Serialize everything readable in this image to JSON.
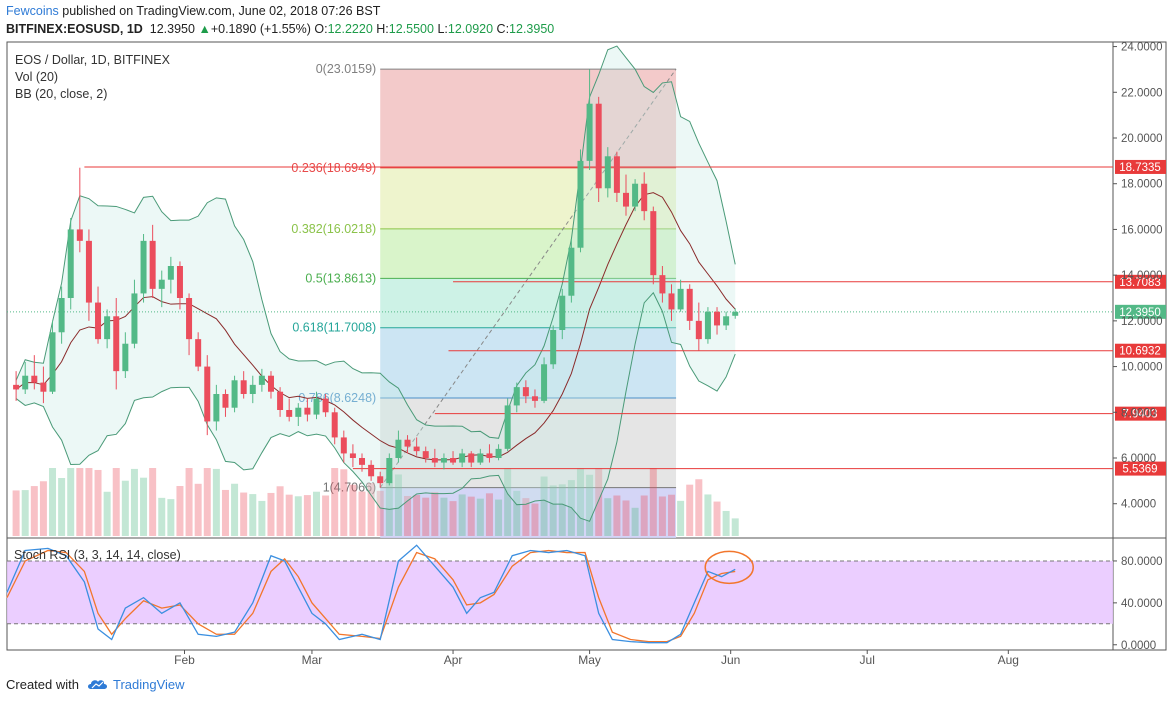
{
  "header": {
    "user": "Fewcoins",
    "published": "published on TradingView.com, June 02, 2018 07:26 BST",
    "symbol": "BITFINEX:EOSUSD, 1D",
    "last": "12.3950",
    "change": "+0.1890 (+1.55%)",
    "o_label": "O:",
    "o": "12.2220",
    "h_label": "H:",
    "h": "12.5500",
    "l_label": "L:",
    "l": "12.0920",
    "c_label": "C:",
    "c": "12.3950"
  },
  "legend": {
    "line1": "EOS / Dollar, 1D, BITFINEX",
    "line2": "Vol (20)",
    "line3": "BB (20, close, 2)"
  },
  "rsi_title": "Stoch RSI (3, 3, 14, 14, close)",
  "footer": {
    "created": "Created with",
    "brand": "TradingView"
  },
  "colors": {
    "up": "#53b987",
    "down": "#eb4d5c",
    "bb": "#4a9a78",
    "bbfill": "#c9ebe4",
    "basis": "#8a2b2b",
    "hline": "#e83a3a",
    "rsi_k": "#3b8fe0",
    "rsi_d": "#f2762c",
    "rsi_band": "#e7c6ff",
    "accent": "#2f7bd6"
  },
  "chart_data": {
    "type": "candlestick",
    "title": "EOS / Dollar, 1D, BITFINEX",
    "y_ticks": [
      "24.0000",
      "22.0000",
      "20.0000",
      "18.0000",
      "16.0000",
      "14.0000",
      "12.0000",
      "10.0000",
      "8.0000",
      "6.0000",
      "4.0000"
    ],
    "y_tick_values": [
      24,
      22,
      20,
      18,
      16,
      14,
      12,
      10,
      8,
      6,
      4
    ],
    "ylim": [
      2.5,
      24.2
    ],
    "x_ticks": [
      "Feb",
      "Mar",
      "Apr",
      "May",
      "Jun",
      "Jul",
      "Aug"
    ],
    "x_tick_dates": [
      "2018-02-01",
      "2018-03-01",
      "2018-04-01",
      "2018-05-01",
      "2018-06-01",
      "2018-07-01",
      "2018-08-01"
    ],
    "x_range_dates": [
      "2017-12-24",
      "2018-08-24"
    ],
    "fibonacci": {
      "start_date": "2018-03-16",
      "end_date": "2018-05-20",
      "levels": [
        {
          "label": "0(23.0159)",
          "value": 23.0159,
          "color": "#808080",
          "fill": "#f2c4c4"
        },
        {
          "label": "0.236(18.6949)",
          "value": 18.6949,
          "color": "#e84a4a",
          "fill": "#ecf3c8"
        },
        {
          "label": "0.382(16.0218)",
          "value": 16.0218,
          "color": "#8bc34a",
          "fill": "#d5f3c4"
        },
        {
          "label": "0.5(13.8613)",
          "value": 13.8613,
          "color": "#4caf50",
          "fill": "#c8f1e3"
        },
        {
          "label": "0.618(11.7008)",
          "value": 11.7008,
          "color": "#26a69a",
          "fill": "#c7e2f2"
        },
        {
          "label": "0.786(8.6248)",
          "value": 8.6248,
          "color": "#4a90c8",
          "fill": "#e2e2e2"
        },
        {
          "label": "1(4.7066)",
          "value": 4.7066,
          "color": "#777777",
          "fill": "#cfd0f5"
        }
      ]
    },
    "horizontal_lines": [
      {
        "value": 18.7335,
        "label": "18.7335",
        "start_date": "2018-01-10"
      },
      {
        "value": 13.7083,
        "label": "13.7083",
        "start_date": "2018-04-01"
      },
      {
        "value": 10.6932,
        "label": "10.6932",
        "start_date": "2018-03-31"
      },
      {
        "value": 7.9403,
        "label": "7.9403",
        "start_date": "2018-03-28"
      },
      {
        "value": 5.5369,
        "label": "5.5369",
        "start_date": "2018-03-10"
      }
    ],
    "last_price": {
      "value": 12.395,
      "label": "12.3950"
    },
    "candles": [
      {
        "d": "2017-12-26",
        "o": 9.2,
        "h": 9.8,
        "l": 8.5,
        "c": 9.0
      },
      {
        "d": "2017-12-28",
        "o": 9.0,
        "h": 10.2,
        "l": 8.8,
        "c": 9.6
      },
      {
        "d": "2017-12-30",
        "o": 9.6,
        "h": 10.5,
        "l": 9.0,
        "c": 9.3
      },
      {
        "d": "2018-01-01",
        "o": 9.3,
        "h": 10.0,
        "l": 8.4,
        "c": 8.9
      },
      {
        "d": "2018-01-03",
        "o": 8.9,
        "h": 12.0,
        "l": 8.8,
        "c": 11.5
      },
      {
        "d": "2018-01-05",
        "o": 11.5,
        "h": 13.5,
        "l": 11.0,
        "c": 13.0
      },
      {
        "d": "2018-01-07",
        "o": 13.0,
        "h": 16.5,
        "l": 12.5,
        "c": 16.0
      },
      {
        "d": "2018-01-09",
        "o": 16.0,
        "h": 18.7,
        "l": 15.0,
        "c": 15.5
      },
      {
        "d": "2018-01-11",
        "o": 15.5,
        "h": 16.0,
        "l": 12.0,
        "c": 12.8
      },
      {
        "d": "2018-01-13",
        "o": 12.8,
        "h": 13.5,
        "l": 11.0,
        "c": 11.2
      },
      {
        "d": "2018-01-15",
        "o": 11.2,
        "h": 12.5,
        "l": 10.8,
        "c": 12.2
      },
      {
        "d": "2018-01-17",
        "o": 12.2,
        "h": 13.0,
        "l": 9.0,
        "c": 9.8
      },
      {
        "d": "2018-01-19",
        "o": 9.8,
        "h": 11.5,
        "l": 9.5,
        "c": 11.0
      },
      {
        "d": "2018-01-21",
        "o": 11.0,
        "h": 13.8,
        "l": 10.8,
        "c": 13.2
      },
      {
        "d": "2018-01-23",
        "o": 13.2,
        "h": 15.8,
        "l": 12.8,
        "c": 15.5
      },
      {
        "d": "2018-01-25",
        "o": 15.5,
        "h": 16.2,
        "l": 13.0,
        "c": 13.4
      },
      {
        "d": "2018-01-27",
        "o": 13.4,
        "h": 14.2,
        "l": 12.6,
        "c": 13.8
      },
      {
        "d": "2018-01-29",
        "o": 13.8,
        "h": 14.8,
        "l": 13.2,
        "c": 14.4
      },
      {
        "d": "2018-01-31",
        "o": 14.4,
        "h": 14.6,
        "l": 12.5,
        "c": 13.0
      },
      {
        "d": "2018-02-02",
        "o": 13.0,
        "h": 13.2,
        "l": 10.5,
        "c": 11.2
      },
      {
        "d": "2018-02-04",
        "o": 11.2,
        "h": 11.5,
        "l": 9.8,
        "c": 10.0
      },
      {
        "d": "2018-02-06",
        "o": 10.0,
        "h": 10.5,
        "l": 7.0,
        "c": 7.6
      },
      {
        "d": "2018-02-08",
        "o": 7.6,
        "h": 9.2,
        "l": 7.2,
        "c": 8.8
      },
      {
        "d": "2018-02-10",
        "o": 8.8,
        "h": 9.0,
        "l": 7.8,
        "c": 8.2
      },
      {
        "d": "2018-02-12",
        "o": 8.2,
        "h": 9.6,
        "l": 8.0,
        "c": 9.4
      },
      {
        "d": "2018-02-14",
        "o": 9.4,
        "h": 9.8,
        "l": 8.6,
        "c": 8.8
      },
      {
        "d": "2018-02-16",
        "o": 8.8,
        "h": 9.6,
        "l": 8.4,
        "c": 9.2
      },
      {
        "d": "2018-02-18",
        "o": 9.2,
        "h": 9.9,
        "l": 8.9,
        "c": 9.6
      },
      {
        "d": "2018-02-20",
        "o": 9.6,
        "h": 9.8,
        "l": 8.6,
        "c": 8.9
      },
      {
        "d": "2018-02-22",
        "o": 8.9,
        "h": 9.1,
        "l": 7.8,
        "c": 8.1
      },
      {
        "d": "2018-02-24",
        "o": 8.1,
        "h": 8.6,
        "l": 7.6,
        "c": 7.8
      },
      {
        "d": "2018-02-26",
        "o": 7.8,
        "h": 8.4,
        "l": 7.4,
        "c": 8.2
      },
      {
        "d": "2018-02-28",
        "o": 8.2,
        "h": 8.6,
        "l": 7.6,
        "c": 7.9
      },
      {
        "d": "2018-03-02",
        "o": 7.9,
        "h": 8.9,
        "l": 7.7,
        "c": 8.6
      },
      {
        "d": "2018-03-04",
        "o": 8.6,
        "h": 8.8,
        "l": 7.8,
        "c": 8.0
      },
      {
        "d": "2018-03-06",
        "o": 8.0,
        "h": 8.2,
        "l": 6.6,
        "c": 6.9
      },
      {
        "d": "2018-03-08",
        "o": 6.9,
        "h": 7.2,
        "l": 5.8,
        "c": 6.2
      },
      {
        "d": "2018-03-10",
        "o": 6.2,
        "h": 6.6,
        "l": 5.6,
        "c": 6.0
      },
      {
        "d": "2018-03-12",
        "o": 6.0,
        "h": 6.2,
        "l": 5.4,
        "c": 5.7
      },
      {
        "d": "2018-03-14",
        "o": 5.7,
        "h": 5.9,
        "l": 5.0,
        "c": 5.2
      },
      {
        "d": "2018-03-16",
        "o": 5.2,
        "h": 5.4,
        "l": 4.7,
        "c": 4.9
      },
      {
        "d": "2018-03-18",
        "o": 4.9,
        "h": 6.2,
        "l": 4.8,
        "c": 6.0
      },
      {
        "d": "2018-03-20",
        "o": 6.0,
        "h": 7.2,
        "l": 5.8,
        "c": 6.8
      },
      {
        "d": "2018-03-22",
        "o": 6.8,
        "h": 7.0,
        "l": 6.2,
        "c": 6.5
      },
      {
        "d": "2018-03-24",
        "o": 6.5,
        "h": 6.9,
        "l": 6.1,
        "c": 6.3
      },
      {
        "d": "2018-03-26",
        "o": 6.3,
        "h": 6.5,
        "l": 5.8,
        "c": 6.0
      },
      {
        "d": "2018-03-28",
        "o": 6.0,
        "h": 6.4,
        "l": 5.6,
        "c": 5.8
      },
      {
        "d": "2018-03-30",
        "o": 5.8,
        "h": 6.2,
        "l": 5.5,
        "c": 6.0
      },
      {
        "d": "2018-04-01",
        "o": 6.0,
        "h": 6.3,
        "l": 5.7,
        "c": 5.8
      },
      {
        "d": "2018-04-03",
        "o": 5.8,
        "h": 6.4,
        "l": 5.6,
        "c": 6.2
      },
      {
        "d": "2018-04-05",
        "o": 6.2,
        "h": 6.3,
        "l": 5.6,
        "c": 5.8
      },
      {
        "d": "2018-04-07",
        "o": 5.8,
        "h": 6.4,
        "l": 5.7,
        "c": 6.2
      },
      {
        "d": "2018-04-09",
        "o": 6.2,
        "h": 6.6,
        "l": 5.8,
        "c": 6.0
      },
      {
        "d": "2018-04-11",
        "o": 6.0,
        "h": 6.6,
        "l": 5.9,
        "c": 6.4
      },
      {
        "d": "2018-04-13",
        "o": 6.4,
        "h": 8.6,
        "l": 6.3,
        "c": 8.3
      },
      {
        "d": "2018-04-15",
        "o": 8.3,
        "h": 9.3,
        "l": 8.0,
        "c": 9.1
      },
      {
        "d": "2018-04-17",
        "o": 9.1,
        "h": 9.4,
        "l": 8.4,
        "c": 8.7
      },
      {
        "d": "2018-04-19",
        "o": 8.7,
        "h": 9.0,
        "l": 8.2,
        "c": 8.5
      },
      {
        "d": "2018-04-21",
        "o": 8.5,
        "h": 10.4,
        "l": 8.4,
        "c": 10.1
      },
      {
        "d": "2018-04-23",
        "o": 10.1,
        "h": 11.8,
        "l": 9.9,
        "c": 11.6
      },
      {
        "d": "2018-04-25",
        "o": 11.6,
        "h": 13.4,
        "l": 11.2,
        "c": 13.1
      },
      {
        "d": "2018-04-27",
        "o": 13.1,
        "h": 15.6,
        "l": 12.8,
        "c": 15.2
      },
      {
        "d": "2018-04-29",
        "o": 15.2,
        "h": 19.5,
        "l": 15.0,
        "c": 19.0
      },
      {
        "d": "2018-05-01",
        "o": 19.0,
        "h": 23.0,
        "l": 18.6,
        "c": 21.5
      },
      {
        "d": "2018-05-03",
        "o": 21.5,
        "h": 21.8,
        "l": 17.2,
        "c": 17.8
      },
      {
        "d": "2018-05-05",
        "o": 17.8,
        "h": 19.6,
        "l": 17.4,
        "c": 19.2
      },
      {
        "d": "2018-05-07",
        "o": 19.2,
        "h": 19.4,
        "l": 17.2,
        "c": 17.6
      },
      {
        "d": "2018-05-09",
        "o": 17.6,
        "h": 18.4,
        "l": 16.6,
        "c": 17.0
      },
      {
        "d": "2018-05-11",
        "o": 17.0,
        "h": 18.2,
        "l": 16.8,
        "c": 18.0
      },
      {
        "d": "2018-05-13",
        "o": 18.0,
        "h": 18.5,
        "l": 16.4,
        "c": 16.8
      },
      {
        "d": "2018-05-15",
        "o": 16.8,
        "h": 17.0,
        "l": 13.6,
        "c": 14.0
      },
      {
        "d": "2018-05-17",
        "o": 14.0,
        "h": 14.4,
        "l": 12.8,
        "c": 13.2
      },
      {
        "d": "2018-05-19",
        "o": 13.2,
        "h": 13.6,
        "l": 12.0,
        "c": 12.5
      },
      {
        "d": "2018-05-21",
        "o": 12.5,
        "h": 13.8,
        "l": 12.4,
        "c": 13.4
      },
      {
        "d": "2018-05-23",
        "o": 13.4,
        "h": 13.6,
        "l": 11.6,
        "c": 12.0
      },
      {
        "d": "2018-05-25",
        "o": 12.0,
        "h": 12.8,
        "l": 10.7,
        "c": 11.2
      },
      {
        "d": "2018-05-27",
        "o": 11.2,
        "h": 12.6,
        "l": 11.0,
        "c": 12.4
      },
      {
        "d": "2018-05-29",
        "o": 12.4,
        "h": 12.6,
        "l": 11.4,
        "c": 11.8
      },
      {
        "d": "2018-05-31",
        "o": 11.8,
        "h": 12.4,
        "l": 11.6,
        "c": 12.2
      },
      {
        "d": "2018-06-02",
        "o": 12.222,
        "h": 12.55,
        "l": 12.092,
        "c": 12.395
      }
    ],
    "stoch_rsi": {
      "title": "Stoch RSI (3, 3, 14, 14, close)",
      "y_ticks": [
        "80.0000",
        "40.0000",
        "0.0000"
      ],
      "y_tick_values": [
        80,
        40,
        0
      ],
      "band": [
        20,
        80
      ],
      "ylim": [
        -5,
        100
      ],
      "k": [
        [
          "2017-12-24",
          50
        ],
        [
          "2017-12-28",
          90
        ],
        [
          "2018-01-02",
          92
        ],
        [
          "2018-01-06",
          85
        ],
        [
          "2018-01-10",
          60
        ],
        [
          "2018-01-13",
          15
        ],
        [
          "2018-01-16",
          5
        ],
        [
          "2018-01-19",
          35
        ],
        [
          "2018-01-23",
          45
        ],
        [
          "2018-01-27",
          30
        ],
        [
          "2018-01-31",
          40
        ],
        [
          "2018-02-04",
          10
        ],
        [
          "2018-02-08",
          8
        ],
        [
          "2018-02-12",
          12
        ],
        [
          "2018-02-16",
          40
        ],
        [
          "2018-02-20",
          85
        ],
        [
          "2018-02-23",
          80
        ],
        [
          "2018-02-26",
          55
        ],
        [
          "2018-03-01",
          30
        ],
        [
          "2018-03-04",
          20
        ],
        [
          "2018-03-07",
          5
        ],
        [
          "2018-03-12",
          10
        ],
        [
          "2018-03-16",
          5
        ],
        [
          "2018-03-20",
          80
        ],
        [
          "2018-03-24",
          95
        ],
        [
          "2018-03-28",
          75
        ],
        [
          "2018-04-01",
          55
        ],
        [
          "2018-04-04",
          30
        ],
        [
          "2018-04-07",
          45
        ],
        [
          "2018-04-10",
          50
        ],
        [
          "2018-04-14",
          85
        ],
        [
          "2018-04-18",
          90
        ],
        [
          "2018-04-22",
          88
        ],
        [
          "2018-04-26",
          90
        ],
        [
          "2018-04-30",
          85
        ],
        [
          "2018-05-03",
          30
        ],
        [
          "2018-05-06",
          5
        ],
        [
          "2018-05-10",
          3
        ],
        [
          "2018-05-14",
          2
        ],
        [
          "2018-05-18",
          2
        ],
        [
          "2018-05-21",
          10
        ],
        [
          "2018-05-24",
          40
        ],
        [
          "2018-05-27",
          70
        ],
        [
          "2018-05-30",
          65
        ],
        [
          "2018-06-02",
          72
        ]
      ],
      "d": [
        [
          "2017-12-24",
          45
        ],
        [
          "2017-12-28",
          80
        ],
        [
          "2018-01-02",
          90
        ],
        [
          "2018-01-06",
          88
        ],
        [
          "2018-01-10",
          70
        ],
        [
          "2018-01-13",
          30
        ],
        [
          "2018-01-16",
          10
        ],
        [
          "2018-01-19",
          25
        ],
        [
          "2018-01-23",
          42
        ],
        [
          "2018-01-27",
          35
        ],
        [
          "2018-01-31",
          38
        ],
        [
          "2018-02-04",
          20
        ],
        [
          "2018-02-08",
          10
        ],
        [
          "2018-02-12",
          10
        ],
        [
          "2018-02-16",
          30
        ],
        [
          "2018-02-20",
          70
        ],
        [
          "2018-02-23",
          82
        ],
        [
          "2018-02-26",
          65
        ],
        [
          "2018-03-01",
          40
        ],
        [
          "2018-03-04",
          25
        ],
        [
          "2018-03-07",
          10
        ],
        [
          "2018-03-12",
          8
        ],
        [
          "2018-03-16",
          6
        ],
        [
          "2018-03-20",
          55
        ],
        [
          "2018-03-24",
          88
        ],
        [
          "2018-03-28",
          82
        ],
        [
          "2018-04-01",
          62
        ],
        [
          "2018-04-04",
          38
        ],
        [
          "2018-04-07",
          40
        ],
        [
          "2018-04-10",
          48
        ],
        [
          "2018-04-14",
          75
        ],
        [
          "2018-04-18",
          88
        ],
        [
          "2018-04-22",
          90
        ],
        [
          "2018-04-26",
          88
        ],
        [
          "2018-04-30",
          88
        ],
        [
          "2018-05-03",
          45
        ],
        [
          "2018-05-06",
          12
        ],
        [
          "2018-05-10",
          5
        ],
        [
          "2018-05-14",
          3
        ],
        [
          "2018-05-18",
          3
        ],
        [
          "2018-05-21",
          8
        ],
        [
          "2018-05-24",
          30
        ],
        [
          "2018-05-27",
          62
        ],
        [
          "2018-05-30",
          68
        ],
        [
          "2018-06-02",
          70
        ]
      ]
    }
  }
}
